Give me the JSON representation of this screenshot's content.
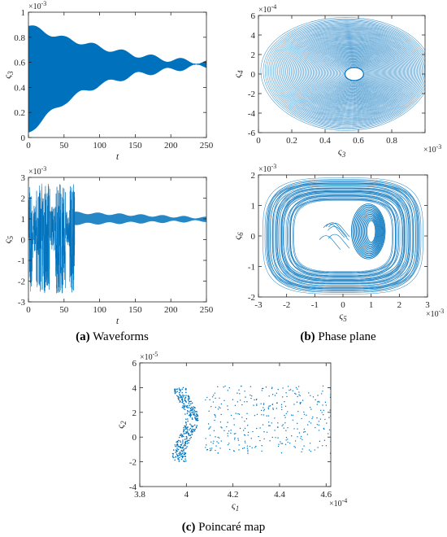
{
  "colors": {
    "series": "#0072BD",
    "axis": "#262626",
    "background": "#ffffff"
  },
  "chart_data": [
    {
      "id": "a-top",
      "type": "line",
      "panel": "a",
      "xlabel": "t",
      "ylabel": "ς3",
      "exponent": "×10-3",
      "xlim": [
        0,
        250
      ],
      "ylim": [
        0,
        1
      ],
      "xticks": [
        0,
        50,
        100,
        150,
        200,
        250
      ],
      "yticks": [
        0,
        0.2,
        0.4,
        0.6,
        0.8,
        1
      ],
      "xtick_labels": [
        "0",
        "50",
        "100",
        "150",
        "200",
        "250"
      ],
      "ytick_labels": [
        "0",
        "0.2",
        "0.4",
        "0.6",
        "0.8",
        "1"
      ],
      "envelope": {
        "t": [
          0,
          25,
          50,
          75,
          100,
          125,
          150,
          175,
          200,
          225,
          250
        ],
        "upper": [
          0.89,
          0.84,
          0.79,
          0.76,
          0.72,
          0.69,
          0.66,
          0.64,
          0.62,
          0.61,
          0.6
        ],
        "lower": [
          0.04,
          0.17,
          0.28,
          0.36,
          0.42,
          0.46,
          0.5,
          0.52,
          0.54,
          0.56,
          0.57
        ]
      }
    },
    {
      "id": "a-bottom",
      "type": "line",
      "panel": "a",
      "xlabel": "t",
      "ylabel": "ς5",
      "exponent": "×10-3",
      "xlim": [
        0,
        250
      ],
      "ylim": [
        -3,
        3
      ],
      "xticks": [
        0,
        50,
        100,
        150,
        200,
        250
      ],
      "yticks": [
        -3,
        -2,
        -1,
        0,
        1,
        2,
        3
      ],
      "xtick_labels": [
        "0",
        "50",
        "100",
        "150",
        "200",
        "250"
      ],
      "ytick_labels": [
        "-3",
        "-2",
        "-1",
        "0",
        "1",
        "2",
        "3"
      ],
      "chaotic_interval": [
        0,
        65
      ],
      "chaotic_range": [
        -2.6,
        2.7
      ],
      "settled_band": {
        "t": [
          65,
          250
        ],
        "lower": [
          0.75,
          0.9
        ],
        "upper": [
          1.3,
          1.05
        ]
      }
    },
    {
      "id": "b-top",
      "type": "scatter",
      "panel": "b",
      "xlabel": "ς3",
      "ylabel": "ς4",
      "x_exponent": "×10-3",
      "y_exponent": "×10-4",
      "xlim": [
        0,
        1
      ],
      "ylim": [
        -6,
        6
      ],
      "xticks": [
        0,
        0.2,
        0.4,
        0.6,
        0.8,
        1
      ],
      "yticks": [
        -6,
        -4,
        -2,
        0,
        2,
        4,
        6
      ],
      "xtick_labels": [
        "0",
        "0.2",
        "0.4",
        "0.6",
        "0.8",
        ""
      ],
      "ytick_labels": [
        "-6",
        "-4",
        "-2",
        "0",
        "2",
        "4",
        "6"
      ],
      "center": [
        0.575,
        0
      ],
      "outer_semi_axes": [
        0.51,
        5.8
      ],
      "inner_semi_axes": [
        0.04,
        0.6
      ]
    },
    {
      "id": "b-bottom",
      "type": "scatter",
      "panel": "b",
      "xlabel": "ς5",
      "ylabel": "ς6",
      "x_exponent": "×10-3",
      "y_exponent": "×10-3",
      "xlim": [
        -3,
        3
      ],
      "ylim": [
        -2,
        2
      ],
      "xticks": [
        -3,
        -2,
        -1,
        0,
        1,
        2,
        3
      ],
      "yticks": [
        -2,
        -1,
        0,
        1,
        2
      ],
      "xtick_labels": [
        "-3",
        "-2",
        "-1",
        "0",
        "1",
        "2",
        "3"
      ],
      "ytick_labels": [
        "-2",
        "-1",
        "0",
        "1",
        "2"
      ],
      "center": [
        0,
        0
      ],
      "outer_semi_axes": [
        2.8,
        1.85
      ],
      "attractor_center": [
        0.9,
        0.15
      ]
    },
    {
      "id": "c",
      "type": "scatter",
      "panel": "c",
      "xlabel": "ς1",
      "ylabel": "ς2",
      "x_exponent": "×10-4",
      "y_exponent": "×10-5",
      "xlim": [
        3.8,
        4.62
      ],
      "ylim": [
        -4,
        6
      ],
      "xticks": [
        3.8,
        4,
        4.2,
        4.4,
        4.6
      ],
      "yticks": [
        -4,
        -2,
        0,
        2,
        4,
        6
      ],
      "xtick_labels": [
        "3.8",
        "4",
        "4.2",
        "4.4",
        "4.6"
      ],
      "ytick_labels": [
        "-4",
        "-2",
        "0",
        "2",
        "4",
        "6"
      ],
      "dense_cluster_x": [
        3.92,
        4.08
      ],
      "dense_cluster_y": [
        -2,
        4
      ],
      "sparse_region_x": [
        4.08,
        4.62
      ],
      "sparse_region_y": [
        -2.5,
        5.3
      ]
    }
  ],
  "captions": {
    "a": {
      "letter": "(a)",
      "text": " Waveforms"
    },
    "b": {
      "letter": "(b)",
      "text": " Phase plane"
    },
    "c": {
      "letter": "(c)",
      "text": " Poincaré map"
    }
  }
}
